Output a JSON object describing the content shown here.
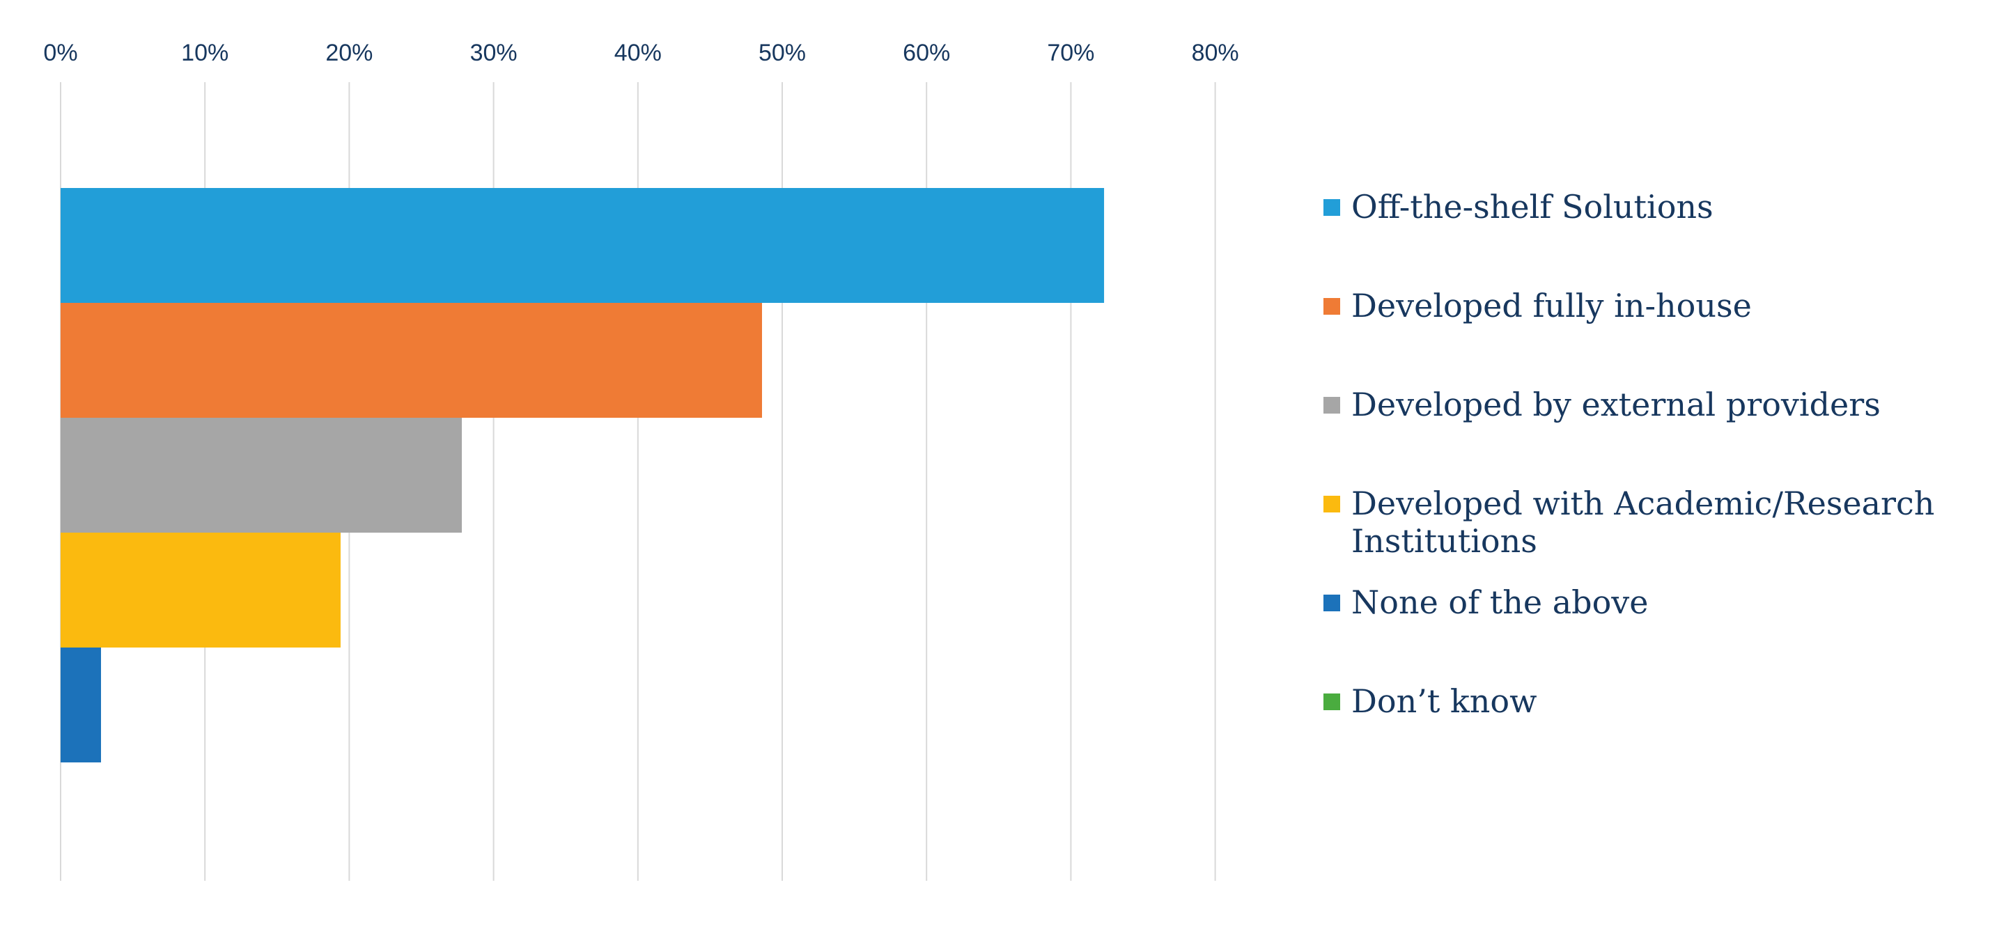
{
  "colors": {
    "text": "#17375e",
    "gridline": "#d9d9d9"
  },
  "chart_data": {
    "type": "bar",
    "orientation": "horizontal",
    "title": "",
    "xlabel": "",
    "ylabel": "",
    "xlim": [
      0,
      80
    ],
    "x_ticks": [
      "0%",
      "10%",
      "20%",
      "30%",
      "40%",
      "50%",
      "60%",
      "70%",
      "80%"
    ],
    "x_axis_position": "top",
    "grid": true,
    "legend": "right",
    "series": [
      {
        "name": "Off-the-shelf Solutions",
        "value": 72.3,
        "color": "#229ed8"
      },
      {
        "name": "Developed fully in-house",
        "value": 48.6,
        "color": "#ef7b35"
      },
      {
        "name": "Developed by external providers",
        "value": 27.8,
        "color": "#a6a6a6"
      },
      {
        "name": "Developed with Academic/Research Institutions",
        "value": 19.4,
        "color": "#fbba0f"
      },
      {
        "name": "None of the above",
        "value": 2.8,
        "color": "#1c72ba"
      },
      {
        "name": "Don’t know",
        "value": 0,
        "color": "#4aac3f"
      }
    ]
  }
}
